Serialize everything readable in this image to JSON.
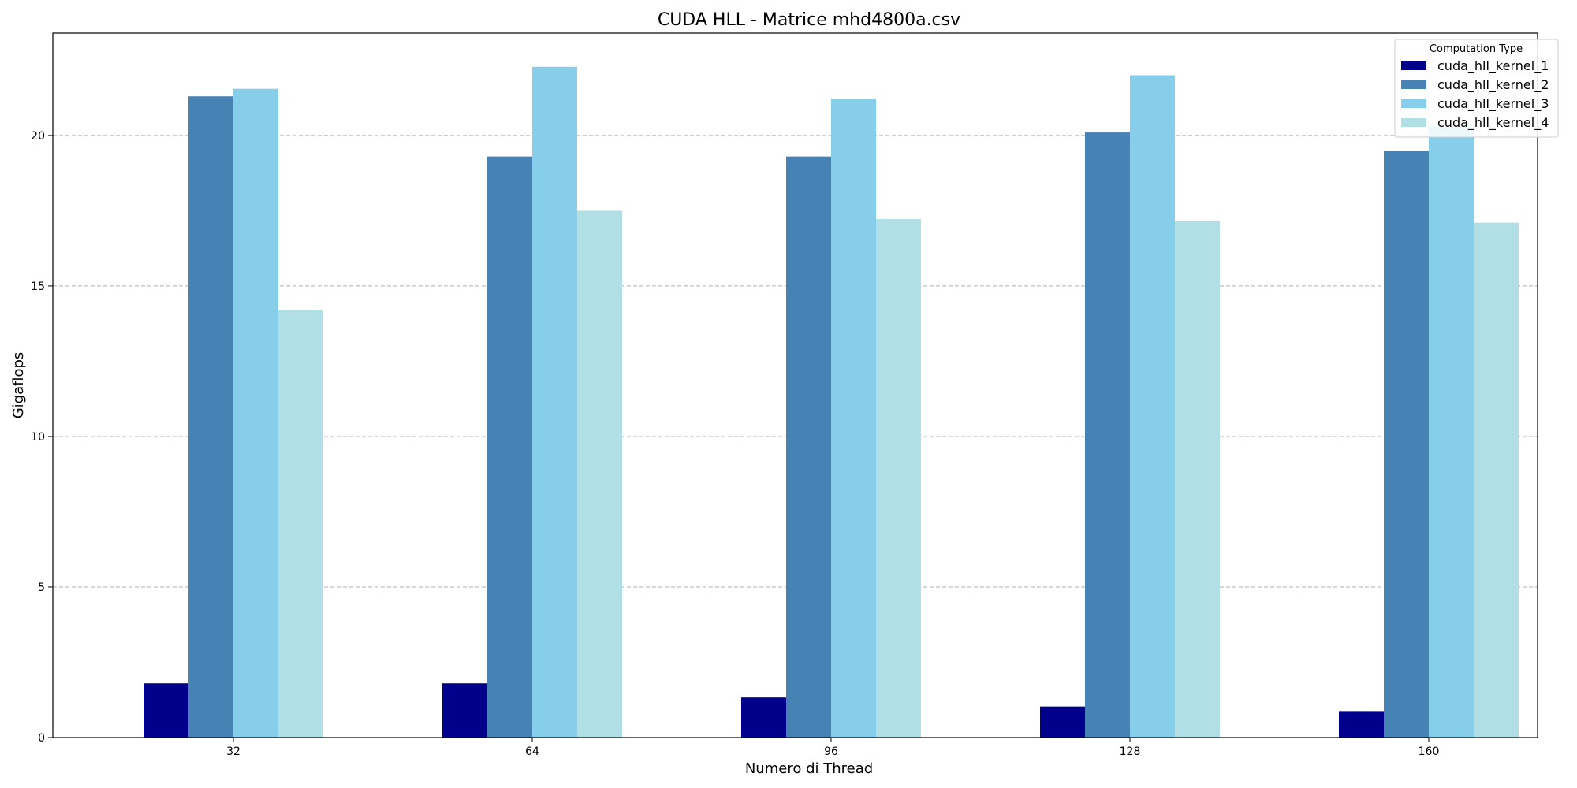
{
  "chart_data": {
    "type": "bar",
    "title": "CUDA HLL - Matrice mhd4800a.csv",
    "xlabel": "Numero di Thread",
    "ylabel": "Gigaflops",
    "categories": [
      "32",
      "64",
      "96",
      "128",
      "160"
    ],
    "ylim": [
      0,
      23.4
    ],
    "yticks": [
      0,
      5,
      10,
      15,
      20
    ],
    "grid": "y-dashed",
    "legend": {
      "title": "Computation Type",
      "placement": "top-right"
    },
    "series": [
      {
        "name": "cuda_hll_kernel_1",
        "color": "#00008B",
        "values": [
          1.8,
          1.8,
          1.33,
          1.03,
          0.88
        ]
      },
      {
        "name": "cuda_hll_kernel_2",
        "color": "#4682B4",
        "values": [
          21.3,
          19.3,
          19.3,
          20.1,
          19.5
        ]
      },
      {
        "name": "cuda_hll_kernel_3",
        "color": "#87CEEB",
        "values": [
          21.55,
          22.28,
          21.22,
          22.0,
          20.3
        ]
      },
      {
        "name": "cuda_hll_kernel_4",
        "color": "#B0E0E6",
        "values": [
          14.2,
          17.5,
          17.22,
          17.15,
          17.1
        ]
      }
    ]
  }
}
